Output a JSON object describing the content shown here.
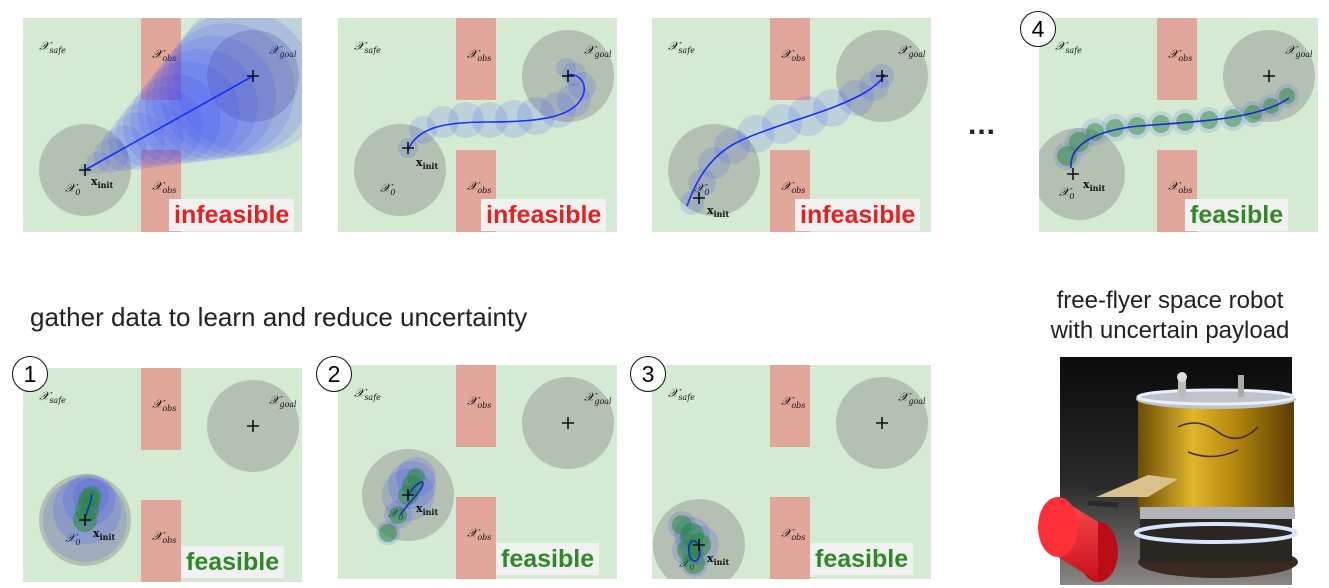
{
  "labels": {
    "safe": "𝒳",
    "safe_sub": "safe",
    "obs": "𝒳",
    "obs_sub": "obs",
    "goal": "𝒳",
    "goal_sub": "goal",
    "x0": "𝒳",
    "x0_sub": "0",
    "xinit": "x",
    "xinit_sub": "init"
  },
  "top_row": [
    {
      "status": "infeasible"
    },
    {
      "status": "infeasible"
    },
    {
      "status": "infeasible"
    },
    {
      "step": "4",
      "status": "feasible"
    }
  ],
  "bottom_row": [
    {
      "step": "1",
      "status": "feasible"
    },
    {
      "step": "2",
      "status": "feasible"
    },
    {
      "step": "3",
      "status": "feasible"
    }
  ],
  "ellipsis": "...",
  "caption_main": "gather data to learn and reduce uncertainty",
  "robot_caption_line1": "free-flyer space robot",
  "robot_caption_line2": "with uncertain payload",
  "colors": {
    "safe": "#d4ead2",
    "obstacle": "#e2a79b",
    "region": "#a9b3a7",
    "uncertain": "#2b3dff",
    "learned": "#1f8a2d",
    "infeasible": "#e8201e",
    "feasible": "#2f8a25"
  }
}
